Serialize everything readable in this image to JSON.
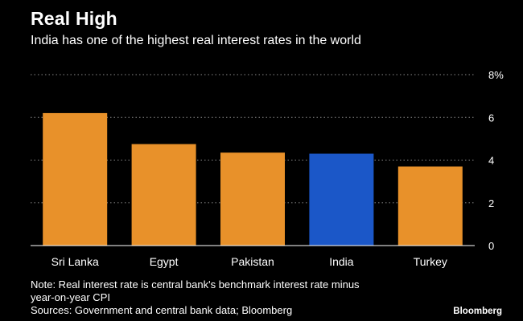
{
  "header": {
    "title": "Real High",
    "subtitle": "India has one of the highest real interest rates in the world"
  },
  "chart_data": {
    "type": "bar",
    "title": "Real High",
    "subtitle": "India has one of the highest real interest rates in the world",
    "categories": [
      "Sri Lanka",
      "Egypt",
      "Pakistan",
      "India",
      "Turkey"
    ],
    "values": [
      6.2,
      4.75,
      4.35,
      4.3,
      3.7
    ],
    "highlight": "India",
    "ylim": [
      0,
      8
    ],
    "yticks": [
      0,
      2,
      4,
      6,
      8
    ],
    "ytick_labels": [
      "0",
      "2",
      "4",
      "6",
      "8%"
    ],
    "xlabel": "",
    "ylabel": "",
    "grid": true,
    "colors": {
      "default": "#e8912a",
      "highlight": "#1b57c8",
      "grid": "#8a8a8a",
      "axis": "#ffffff"
    }
  },
  "footer": {
    "note_line1": "Note: Real interest rate is central bank's benchmark interest rate minus",
    "note_line2": "year-on-year CPI",
    "sources": "Sources: Government and central bank data; Bloomberg",
    "brand": "Bloomberg"
  }
}
